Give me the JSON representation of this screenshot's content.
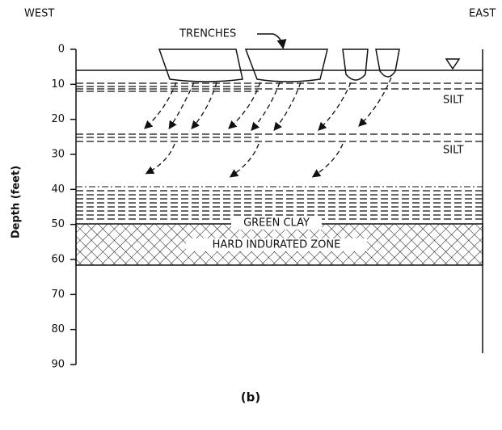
{
  "header": {
    "west": "WEST",
    "east": "EAST",
    "trenches": "TRENCHES"
  },
  "axis": {
    "label": "Depth (feet)",
    "ticks": [
      0,
      10,
      20,
      30,
      40,
      50,
      60,
      70,
      80,
      90
    ]
  },
  "layers": {
    "silt_upper": "SILT",
    "silt_lower": "SILT",
    "green_clay": "GREEN CLAY",
    "hard_zone": "HARD INDURATED ZONE"
  },
  "caption": "(b)"
}
